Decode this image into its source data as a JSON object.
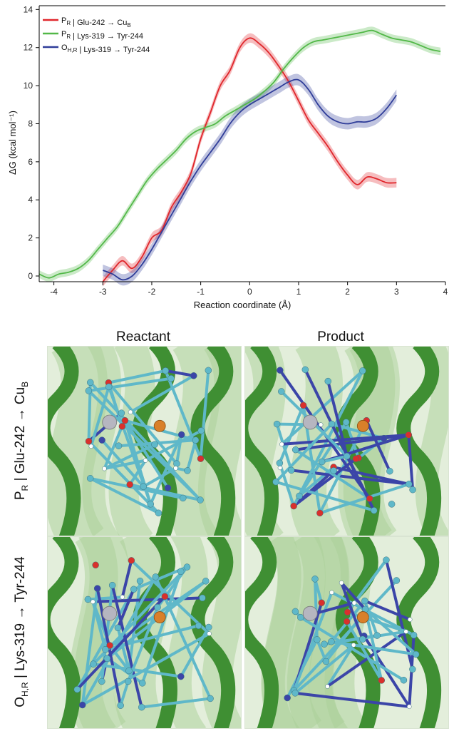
{
  "chart_data": {
    "type": "line",
    "xlabel": "Reaction coordinate (Å)",
    "ylabel": "ΔG (kcal mol⁻¹)",
    "xlim": [
      -4.3,
      4.0
    ],
    "ylim": [
      -0.3,
      14.2
    ],
    "xticks": [
      "-4",
      "-3",
      "-2",
      "-1",
      "0",
      "1",
      "2",
      "3",
      "4"
    ],
    "yticks": [
      "0",
      "2",
      "4",
      "6",
      "8",
      "10",
      "12",
      "14"
    ],
    "legend_placement": "top-left",
    "grid": false,
    "series": [
      {
        "name": "P_R | Glu-242 → Cu_B",
        "legend": {
          "main": "P",
          "sub": "R",
          "rest": " | Glu-242 → Cu",
          "sub2": "B"
        },
        "color": "#e0262b",
        "x": [
          -3.0,
          -2.8,
          -2.6,
          -2.4,
          -2.2,
          -2.0,
          -1.8,
          -1.6,
          -1.4,
          -1.2,
          -1.0,
          -0.8,
          -0.6,
          -0.4,
          -0.2,
          0.0,
          0.2,
          0.4,
          0.6,
          0.8,
          1.0,
          1.2,
          1.4,
          1.6,
          1.8,
          2.0,
          2.2,
          2.4,
          2.6,
          2.8,
          3.0
        ],
        "y": [
          -0.3,
          0.3,
          0.8,
          0.4,
          1.0,
          2.0,
          2.4,
          3.6,
          4.4,
          5.4,
          7.2,
          8.6,
          10.0,
          10.8,
          12.0,
          12.5,
          12.2,
          11.7,
          11.0,
          10.2,
          9.2,
          8.2,
          7.5,
          6.8,
          6.0,
          5.3,
          4.8,
          5.2,
          5.1,
          4.9,
          4.9
        ],
        "band": 0.25
      },
      {
        "name": "P_R | Lys-319 → Tyr-244",
        "legend": {
          "main": "P",
          "sub": "R",
          "rest": " | Lys-319 → Tyr-244",
          "sub2": ""
        },
        "color": "#52b848",
        "x": [
          -4.3,
          -4.1,
          -3.9,
          -3.7,
          -3.5,
          -3.3,
          -3.1,
          -2.9,
          -2.7,
          -2.5,
          -2.3,
          -2.1,
          -1.9,
          -1.7,
          -1.5,
          -1.3,
          -1.1,
          -0.9,
          -0.7,
          -0.5,
          -0.3,
          -0.1,
          0.1,
          0.3,
          0.5,
          0.7,
          0.9,
          1.1,
          1.3,
          1.5,
          1.7,
          1.9,
          2.1,
          2.3,
          2.5,
          2.7,
          2.9,
          3.1,
          3.3,
          3.5,
          3.7,
          3.9
        ],
        "y": [
          0.1,
          -0.1,
          0.1,
          0.2,
          0.4,
          0.8,
          1.4,
          2.0,
          2.6,
          3.4,
          4.2,
          5.0,
          5.6,
          6.1,
          6.6,
          7.2,
          7.6,
          7.8,
          8.0,
          8.4,
          8.7,
          9.0,
          9.3,
          9.7,
          10.2,
          10.9,
          11.5,
          12.0,
          12.3,
          12.4,
          12.5,
          12.6,
          12.7,
          12.8,
          12.9,
          12.7,
          12.5,
          12.4,
          12.3,
          12.1,
          11.9,
          11.8
        ],
        "band": 0.2
      },
      {
        "name": "O_H,R | Lys-319 → Tyr-244",
        "legend": {
          "main": "O",
          "sub": "H,R",
          "rest": " | Lys-319 → Tyr-244",
          "sub2": ""
        },
        "color": "#2f3d99",
        "x": [
          -3.0,
          -2.8,
          -2.6,
          -2.4,
          -2.2,
          -2.0,
          -1.8,
          -1.6,
          -1.4,
          -1.2,
          -1.0,
          -0.8,
          -0.6,
          -0.4,
          -0.2,
          0.0,
          0.2,
          0.4,
          0.6,
          0.8,
          1.0,
          1.2,
          1.4,
          1.6,
          1.8,
          2.0,
          2.2,
          2.4,
          2.6,
          2.8,
          3.0
        ],
        "y": [
          0.3,
          0.1,
          -0.2,
          0.0,
          0.6,
          1.4,
          2.3,
          3.2,
          4.1,
          5.0,
          5.8,
          6.5,
          7.2,
          8.0,
          8.6,
          9.0,
          9.3,
          9.6,
          9.9,
          10.2,
          10.3,
          9.8,
          9.0,
          8.4,
          8.1,
          8.0,
          8.1,
          8.1,
          8.3,
          8.8,
          9.5
        ],
        "band": 0.3
      }
    ]
  },
  "structure_panels": {
    "column_titles": [
      "Reactant",
      "Product"
    ],
    "row_labels": [
      {
        "main": "P",
        "sub": "R",
        "rest": " | Glu-242 → Cu",
        "sub2": "B"
      },
      {
        "main": "O",
        "sub": "H,R",
        "rest": " | Lys-319 → Tyr-244",
        "sub2": ""
      }
    ],
    "colors": {
      "helix": "#3f8f33",
      "helix_light": "#a9cf98",
      "background": "#e3eedb",
      "carbon": "#5fb8c9",
      "oxygen": "#d9302c",
      "nitrogen": "#3b45a8",
      "copper": "#d9802a",
      "iron": "#b6b6c0",
      "hydrogen": "#ffffff"
    }
  }
}
